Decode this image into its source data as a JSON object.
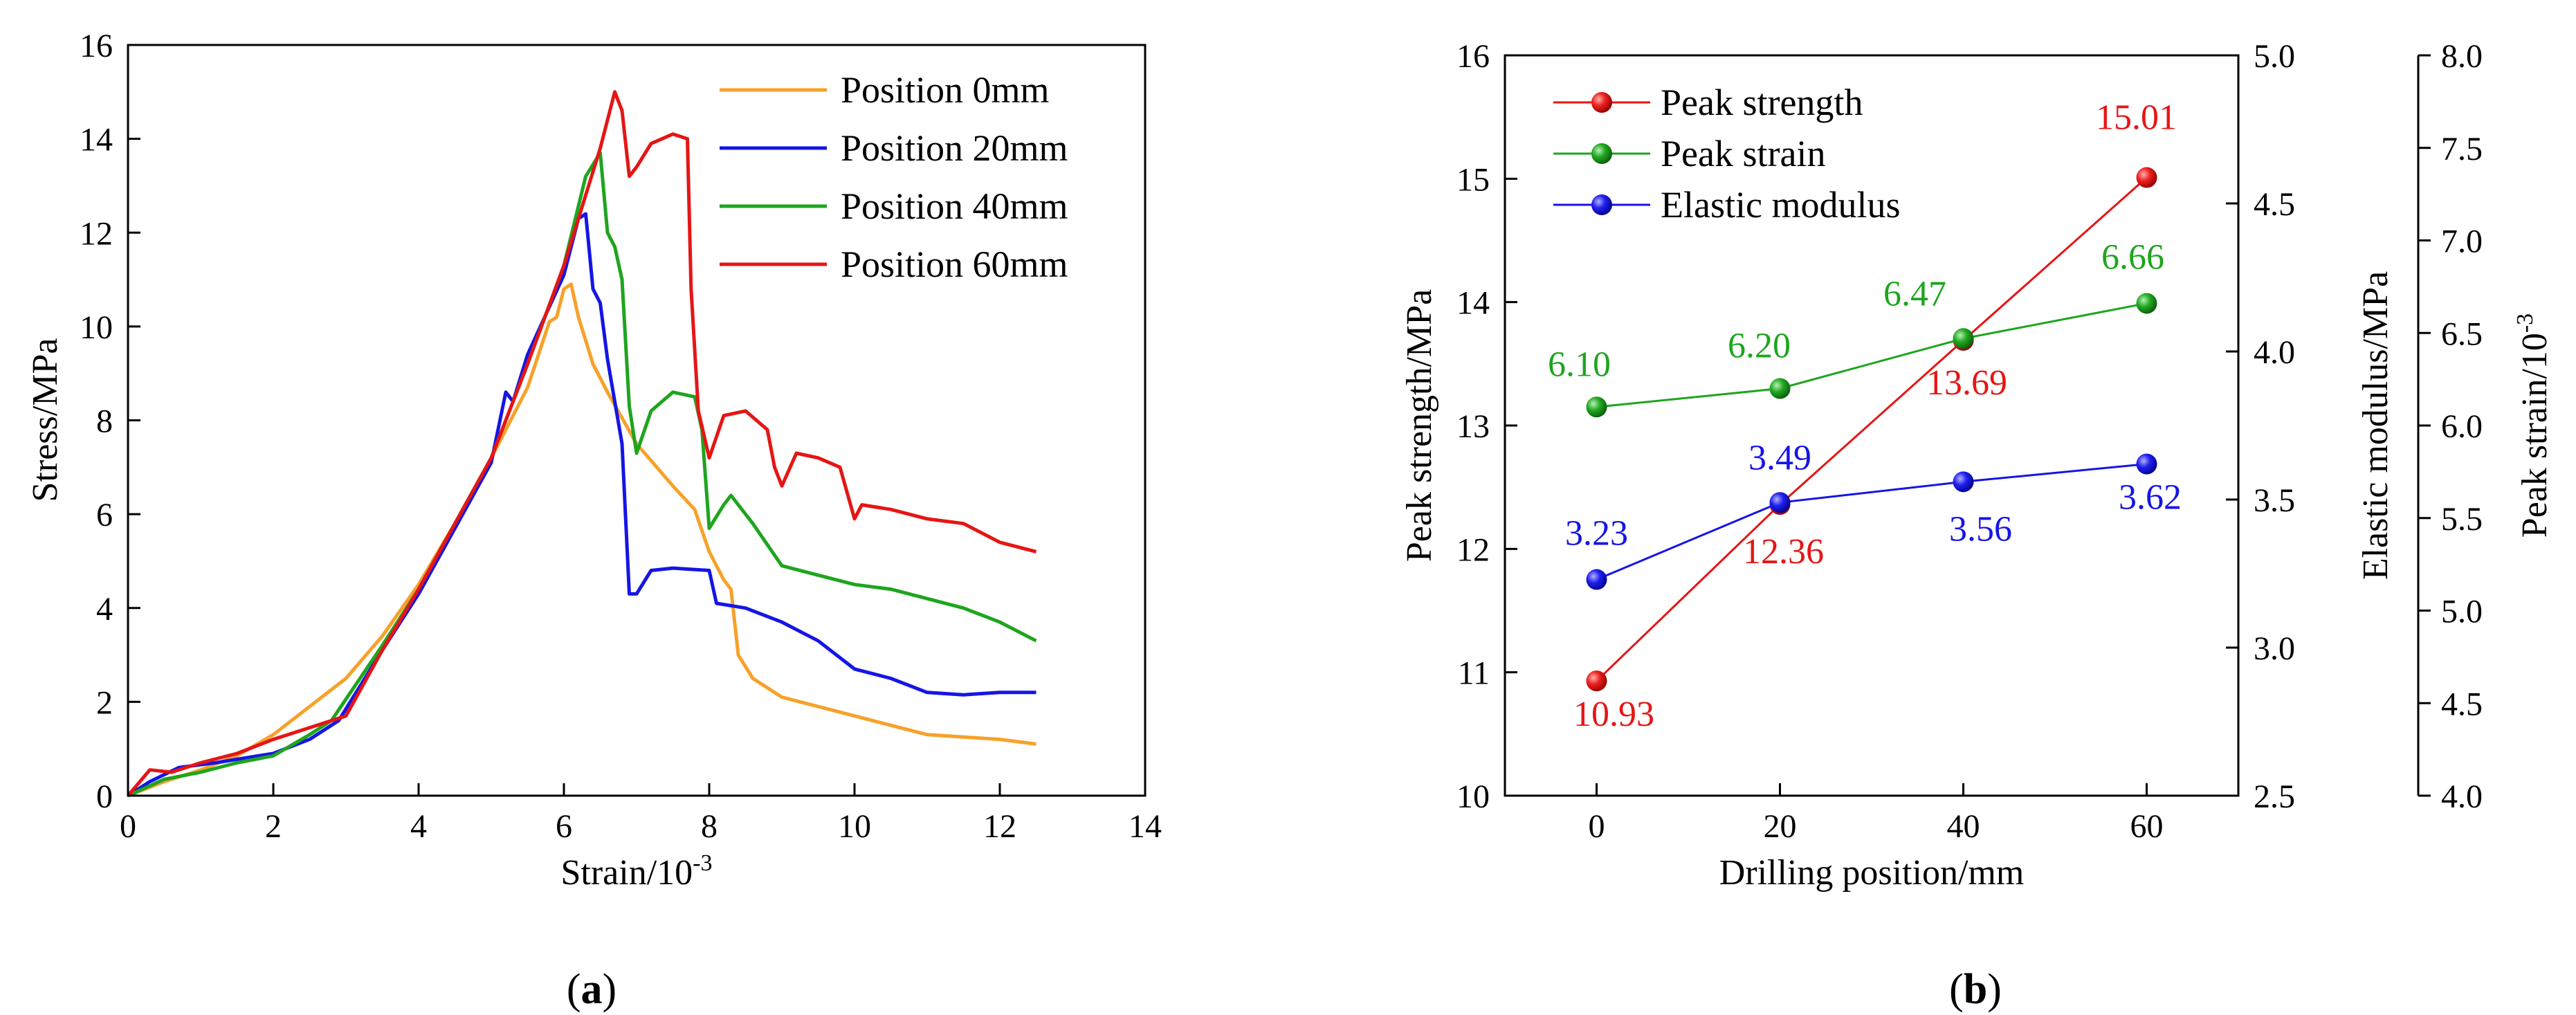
{
  "chart_data": [
    {
      "type": "line",
      "panel_label": "a",
      "xlabel": "Strain/10",
      "xlabel_exp": "-3",
      "ylabel": "Stress/MPa",
      "xlim": [
        0,
        14
      ],
      "ylim": [
        0,
        16
      ],
      "xticks": [
        0,
        2,
        4,
        6,
        8,
        10,
        12,
        14
      ],
      "yticks": [
        0,
        2,
        4,
        6,
        8,
        10,
        12,
        14,
        16
      ],
      "grid": false,
      "legend_position": "top-right",
      "series": [
        {
          "name": "Position 0mm",
          "color": "#f7a12a",
          "points": [
            [
              0,
              0
            ],
            [
              0.5,
              0.3
            ],
            [
              1,
              0.55
            ],
            [
              1.5,
              0.85
            ],
            [
              2,
              1.3
            ],
            [
              2.5,
              1.9
            ],
            [
              3,
              2.5
            ],
            [
              3.5,
              3.4
            ],
            [
              4,
              4.5
            ],
            [
              4.5,
              5.8
            ],
            [
              5,
              7.2
            ],
            [
              5.5,
              8.7
            ],
            [
              5.8,
              10.1
            ],
            [
              5.9,
              10.2
            ],
            [
              6,
              10.8
            ],
            [
              6.1,
              10.9
            ],
            [
              6.2,
              10.2
            ],
            [
              6.4,
              9.2
            ],
            [
              6.6,
              8.6
            ],
            [
              7,
              7.5
            ],
            [
              7.5,
              6.6
            ],
            [
              7.8,
              6.1
            ],
            [
              8,
              5.2
            ],
            [
              8.2,
              4.6
            ],
            [
              8.3,
              4.4
            ],
            [
              8.4,
              3.0
            ],
            [
              8.6,
              2.5
            ],
            [
              9,
              2.1
            ],
            [
              9.5,
              1.9
            ],
            [
              10,
              1.7
            ],
            [
              10.5,
              1.5
            ],
            [
              11,
              1.3
            ],
            [
              11.5,
              1.25
            ],
            [
              12,
              1.2
            ],
            [
              12.5,
              1.1
            ]
          ]
        },
        {
          "name": "Position 20mm",
          "color": "#1515e6",
          "points": [
            [
              0,
              0
            ],
            [
              0.3,
              0.3
            ],
            [
              0.7,
              0.6
            ],
            [
              1.2,
              0.7
            ],
            [
              2,
              0.9
            ],
            [
              2.5,
              1.2
            ],
            [
              2.9,
              1.6
            ],
            [
              3.5,
              3.1
            ],
            [
              4,
              4.3
            ],
            [
              4.5,
              5.7
            ],
            [
              5,
              7.1
            ],
            [
              5.2,
              8.6
            ],
            [
              5.3,
              8.4
            ],
            [
              5.5,
              9.4
            ],
            [
              6,
              11.1
            ],
            [
              6.2,
              12.3
            ],
            [
              6.3,
              12.4
            ],
            [
              6.4,
              10.8
            ],
            [
              6.5,
              10.5
            ],
            [
              6.6,
              9.3
            ],
            [
              6.8,
              7.5
            ],
            [
              6.9,
              4.3
            ],
            [
              7,
              4.3
            ],
            [
              7.2,
              4.8
            ],
            [
              7.5,
              4.85
            ],
            [
              8,
              4.8
            ],
            [
              8.1,
              4.1
            ],
            [
              8.5,
              4.0
            ],
            [
              9,
              3.7
            ],
            [
              9.5,
              3.3
            ],
            [
              10,
              2.7
            ],
            [
              10.5,
              2.5
            ],
            [
              11,
              2.2
            ],
            [
              11.5,
              2.15
            ],
            [
              12,
              2.2
            ],
            [
              12.5,
              2.2
            ]
          ]
        },
        {
          "name": "Position 40mm",
          "color": "#1ea51e",
          "points": [
            [
              0,
              0
            ],
            [
              0.5,
              0.35
            ],
            [
              1,
              0.5
            ],
            [
              1.5,
              0.7
            ],
            [
              2,
              0.85
            ],
            [
              2.5,
              1.3
            ],
            [
              2.8,
              1.6
            ],
            [
              3.5,
              3.2
            ],
            [
              4,
              4.4
            ],
            [
              4.5,
              5.8
            ],
            [
              5,
              7.2
            ],
            [
              5.5,
              9.2
            ],
            [
              6,
              11.3
            ],
            [
              6.3,
              13.2
            ],
            [
              6.5,
              13.7
            ],
            [
              6.6,
              12.0
            ],
            [
              6.7,
              11.7
            ],
            [
              6.8,
              11.0
            ],
            [
              6.9,
              8.3
            ],
            [
              7,
              7.3
            ],
            [
              7.2,
              8.2
            ],
            [
              7.5,
              8.6
            ],
            [
              7.8,
              8.5
            ],
            [
              7.9,
              7.8
            ],
            [
              8,
              5.7
            ],
            [
              8.2,
              6.2
            ],
            [
              8.3,
              6.4
            ],
            [
              8.6,
              5.8
            ],
            [
              9,
              4.9
            ],
            [
              9.5,
              4.7
            ],
            [
              10,
              4.5
            ],
            [
              10.5,
              4.4
            ],
            [
              11,
              4.2
            ],
            [
              11.5,
              4.0
            ],
            [
              12,
              3.7
            ],
            [
              12.5,
              3.3
            ]
          ]
        },
        {
          "name": "Position 60mm",
          "color": "#e61515",
          "points": [
            [
              0,
              0
            ],
            [
              0.3,
              0.55
            ],
            [
              0.6,
              0.5
            ],
            [
              1,
              0.7
            ],
            [
              1.5,
              0.9
            ],
            [
              2,
              1.2
            ],
            [
              2.5,
              1.45
            ],
            [
              3,
              1.7
            ],
            [
              3.5,
              3.1
            ],
            [
              4,
              4.4
            ],
            [
              4.5,
              5.8
            ],
            [
              5,
              7.2
            ],
            [
              5.5,
              9.2
            ],
            [
              6,
              11.3
            ],
            [
              6.5,
              13.8
            ],
            [
              6.7,
              15.0
            ],
            [
              6.8,
              14.6
            ],
            [
              6.9,
              13.2
            ],
            [
              7,
              13.4
            ],
            [
              7.2,
              13.9
            ],
            [
              7.5,
              14.1
            ],
            [
              7.7,
              14.0
            ],
            [
              7.75,
              10.8
            ],
            [
              7.85,
              8.2
            ],
            [
              8,
              7.2
            ],
            [
              8.2,
              8.1
            ],
            [
              8.5,
              8.2
            ],
            [
              8.8,
              7.8
            ],
            [
              8.9,
              7.0
            ],
            [
              9,
              6.6
            ],
            [
              9.2,
              7.3
            ],
            [
              9.5,
              7.2
            ],
            [
              9.8,
              7.0
            ],
            [
              10,
              5.9
            ],
            [
              10.1,
              6.2
            ],
            [
              10.5,
              6.1
            ],
            [
              11,
              5.9
            ],
            [
              11.5,
              5.8
            ],
            [
              12,
              5.4
            ],
            [
              12.5,
              5.2
            ]
          ]
        }
      ]
    },
    {
      "type": "line",
      "panel_label": "b",
      "xlabel": "Drilling position/mm",
      "ylabel_left": "Peak strength/MPa",
      "ylabel_right1": "Elastic modulus/MPa",
      "ylabel_right2": "Peak strain/10",
      "ylabel_right2_exp": "-3",
      "xlim": [
        -10,
        70
      ],
      "xticks": [
        0,
        20,
        40,
        60
      ],
      "ylim_left": [
        10,
        16
      ],
      "yticks_left": [
        10,
        11,
        12,
        13,
        14,
        15,
        16
      ],
      "ylim_right1": [
        2.5,
        5.0
      ],
      "yticks_right1": [
        "2.5",
        "3.0",
        "3.5",
        "4.0",
        "4.5",
        "5.0"
      ],
      "ylim_right2": [
        4.0,
        8.0
      ],
      "yticks_right2": [
        "4.0",
        "4.5",
        "5.0",
        "5.5",
        "6.0",
        "6.5",
        "7.0",
        "7.5",
        "8.0"
      ],
      "grid": false,
      "legend_position": "top-left",
      "x": [
        0,
        20,
        40,
        60
      ],
      "series": [
        {
          "name": "Peak strength",
          "color": "#e61515",
          "axis": "left",
          "values": [
            10.93,
            12.36,
            13.69,
            15.01
          ],
          "labels": [
            "10.93",
            "12.36",
            "13.69",
            "15.01"
          ]
        },
        {
          "name": "Peak strain",
          "color": "#1ea51e",
          "axis": "right2",
          "values": [
            6.1,
            6.2,
            6.47,
            6.66
          ],
          "labels": [
            "6.10",
            "6.20",
            "6.47",
            "6.66"
          ]
        },
        {
          "name": "Elastic modulus",
          "color": "#1515e6",
          "axis": "right1",
          "values": [
            3.23,
            3.49,
            3.56,
            3.62
          ],
          "labels": [
            "3.23",
            "3.49",
            "3.56",
            "3.62"
          ]
        }
      ]
    }
  ]
}
